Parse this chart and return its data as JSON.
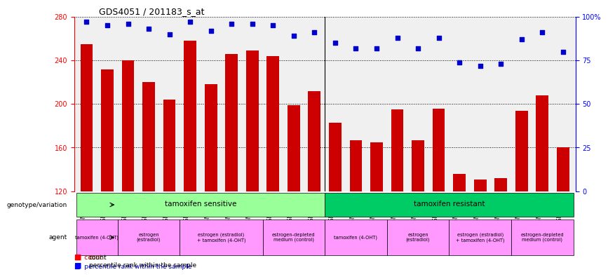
{
  "title": "GDS4051 / 201183_s_at",
  "samples": [
    "GSM649490",
    "GSM649491",
    "GSM649492",
    "GSM649487",
    "GSM649488",
    "GSM649489",
    "GSM649493",
    "GSM649494",
    "GSM649495",
    "GSM649484",
    "GSM649485",
    "GSM649486",
    "GSM649502",
    "GSM649503",
    "GSM649504",
    "GSM649499",
    "GSM649500",
    "GSM649501",
    "GSM649505",
    "GSM649506",
    "GSM649507",
    "GSM649496",
    "GSM649497",
    "GSM649498"
  ],
  "bar_values": [
    255,
    232,
    240,
    220,
    204,
    258,
    218,
    246,
    249,
    244,
    199,
    212,
    183,
    167,
    165,
    195,
    167,
    196,
    136,
    131,
    132,
    194,
    208,
    160
  ],
  "percentile_values": [
    97,
    95,
    96,
    93,
    90,
    97,
    92,
    96,
    96,
    95,
    89,
    91,
    85,
    82,
    82,
    88,
    82,
    88,
    74,
    72,
    73,
    87,
    91,
    80
  ],
  "bar_color": "#cc0000",
  "dot_color": "#0000cc",
  "ylim_left": [
    120,
    280
  ],
  "ylim_right": [
    0,
    100
  ],
  "yticks_left": [
    120,
    160,
    200,
    240,
    280
  ],
  "yticks_right": [
    0,
    25,
    50,
    75,
    100
  ],
  "ytick_labels_right": [
    "0",
    "25",
    "50",
    "75",
    "100%"
  ],
  "background_color": "#f0f0f0",
  "agent_groups_sensitive": [
    {
      "label": "tamoxifen (4-OHT)",
      "n": 2,
      "color": "#ff99ff"
    },
    {
      "label": "estrogen\n(estradiol)",
      "n": 3,
      "color": "#ff99ff"
    },
    {
      "label": "estrogen (estradiol)\n+ tamoxifen (4-OHT)",
      "n": 4,
      "color": "#ff99ff"
    },
    {
      "label": "estrogen-depleted\nmedium (control)",
      "n": 3,
      "color": "#ff99ff"
    }
  ],
  "agent_groups_resistant": [
    {
      "label": "tamoxifen (4-OHT)",
      "n": 3,
      "color": "#ff99ff"
    },
    {
      "label": "estrogen\n(estradiol)",
      "n": 3,
      "color": "#ff99ff"
    },
    {
      "label": "estrogen (estradiol)\n+ tamoxifen (4-OHT)",
      "n": 3,
      "color": "#ff99ff"
    },
    {
      "label": "estrogen-depleted\nmedium (control)",
      "n": 3,
      "color": "#ff99ff"
    }
  ],
  "genotype_sensitive_label": "tamoxifen sensitive",
  "genotype_resistant_label": "tamoxifen resistant",
  "genotype_sensitive_color": "#99ff99",
  "genotype_resistant_color": "#00cc66",
  "sensitive_count": 12,
  "resistant_count": 12
}
